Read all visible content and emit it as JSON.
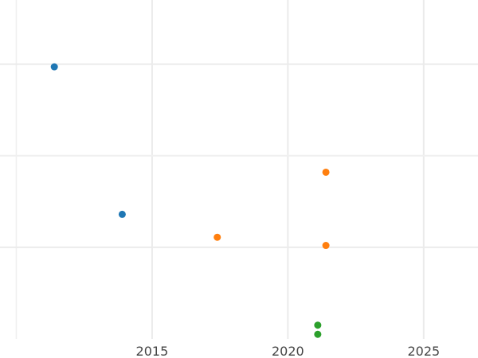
{
  "chart_data": {
    "type": "scatter",
    "title": "",
    "xlabel": "",
    "ylabel": "",
    "xlim": [
      2009.4,
      2027.0
    ],
    "ylim": [
      0,
      3.7
    ],
    "x_ticks": [
      2015,
      2020,
      2025
    ],
    "x_tick_labels": [
      "2015",
      "2020",
      "2025"
    ],
    "x_minor_ticks": [
      2010
    ],
    "y_gridlines": [
      1,
      2,
      3
    ],
    "y_tick_labels_shown": false,
    "grid": true,
    "legend": "none",
    "series": [
      {
        "color": "#1f77b4",
        "points": [
          {
            "x": 2011.4,
            "y": 2.97
          },
          {
            "x": 2013.9,
            "y": 1.36
          }
        ]
      },
      {
        "color": "#ff7f0e",
        "points": [
          {
            "x": 2021.4,
            "y": 1.82
          },
          {
            "x": 2017.4,
            "y": 1.11
          },
          {
            "x": 2021.4,
            "y": 1.02
          }
        ]
      },
      {
        "color": "#2ca02c",
        "points": [
          {
            "x": 2021.1,
            "y": 0.15
          },
          {
            "x": 2021.1,
            "y": 0.05
          }
        ]
      }
    ]
  }
}
